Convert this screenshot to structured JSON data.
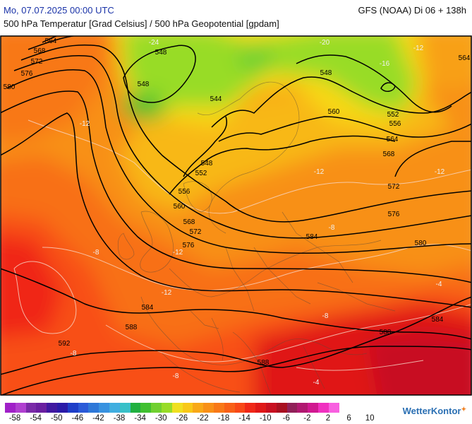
{
  "header": {
    "valid_time": "Mo, 07.07.2025 00:00 UTC",
    "model_run": "GFS (NOAA) Di 06 + 138h",
    "parameters": "500 hPa Temperatur [Grad Celsius] / 500 hPa Geopotential [gpdam]"
  },
  "map": {
    "contour_labels": [
      {
        "value": "564",
        "group": "geopotential"
      },
      {
        "value": "568",
        "group": "geopotential"
      },
      {
        "value": "572",
        "group": "geopotential"
      },
      {
        "value": "576",
        "group": "geopotential"
      },
      {
        "value": "580",
        "group": "geopotential"
      },
      {
        "value": "548",
        "group": "geopotential"
      },
      {
        "value": "548",
        "group": "geopotential"
      },
      {
        "value": "544",
        "group": "geopotential"
      },
      {
        "value": "548",
        "group": "geopotential"
      },
      {
        "value": "552",
        "group": "geopotential"
      },
      {
        "value": "556",
        "group": "geopotential"
      },
      {
        "value": "560",
        "group": "geopotential"
      },
      {
        "value": "568",
        "group": "geopotential"
      },
      {
        "value": "572",
        "group": "geopotential"
      },
      {
        "value": "576",
        "group": "geopotential"
      },
      {
        "value": "584",
        "group": "geopotential"
      },
      {
        "value": "588",
        "group": "geopotential"
      },
      {
        "value": "592",
        "group": "geopotential"
      },
      {
        "value": "588",
        "group": "geopotential"
      },
      {
        "value": "548",
        "group": "geopotential"
      },
      {
        "value": "560",
        "group": "geopotential"
      },
      {
        "value": "552",
        "group": "geopotential"
      },
      {
        "value": "556",
        "group": "geopotential"
      },
      {
        "value": "564",
        "group": "geopotential"
      },
      {
        "value": "568",
        "group": "geopotential"
      },
      {
        "value": "572",
        "group": "geopotential"
      },
      {
        "value": "576",
        "group": "geopotential"
      },
      {
        "value": "580",
        "group": "geopotential"
      },
      {
        "value": "584",
        "group": "geopotential"
      },
      {
        "value": "584",
        "group": "geopotential"
      },
      {
        "value": "588",
        "group": "geopotential"
      },
      {
        "value": "564",
        "group": "geopotential"
      },
      {
        "value": "-24",
        "group": "temperature"
      },
      {
        "value": "-12",
        "group": "temperature"
      },
      {
        "value": "-12",
        "group": "temperature"
      },
      {
        "value": "-12",
        "group": "temperature"
      },
      {
        "value": "-12",
        "group": "temperature"
      },
      {
        "value": "-8",
        "group": "temperature"
      },
      {
        "value": "-8",
        "group": "temperature"
      },
      {
        "value": "-8",
        "group": "temperature"
      },
      {
        "value": "-8",
        "group": "temperature"
      },
      {
        "value": "-8",
        "group": "temperature"
      },
      {
        "value": "-4",
        "group": "temperature"
      },
      {
        "value": "-4",
        "group": "temperature"
      },
      {
        "value": "-16",
        "group": "temperature"
      },
      {
        "value": "-20",
        "group": "temperature"
      },
      {
        "value": "-12",
        "group": "temperature"
      },
      {
        "value": "-12",
        "group": "temperature"
      }
    ]
  },
  "legend": {
    "colors": [
      "#a020c8",
      "#b040d0",
      "#7a2aa8",
      "#6a1fa0",
      "#4018a0",
      "#2a1aa8",
      "#1e3ec8",
      "#2a5ad8",
      "#2e78d8",
      "#3892e0",
      "#40aee0",
      "#38c0c8",
      "#20b040",
      "#40c030",
      "#70d030",
      "#98dc28",
      "#f0e020",
      "#f8c818",
      "#f8a818",
      "#f89018",
      "#f87818",
      "#f86018",
      "#f84818",
      "#f02818",
      "#e01818",
      "#c81020",
      "#a81020",
      "#902058",
      "#b01870",
      "#d01890",
      "#f030c0",
      "#f860e0"
    ],
    "ticks": [
      "-58",
      "-54",
      "-50",
      "-46",
      "-42",
      "-38",
      "-34",
      "-30",
      "-26",
      "-22",
      "-18",
      "-14",
      "-10",
      "-6",
      "-2",
      "2",
      "6",
      "10"
    ],
    "brand": "WetterKontor",
    "brand_mark": "✦"
  }
}
